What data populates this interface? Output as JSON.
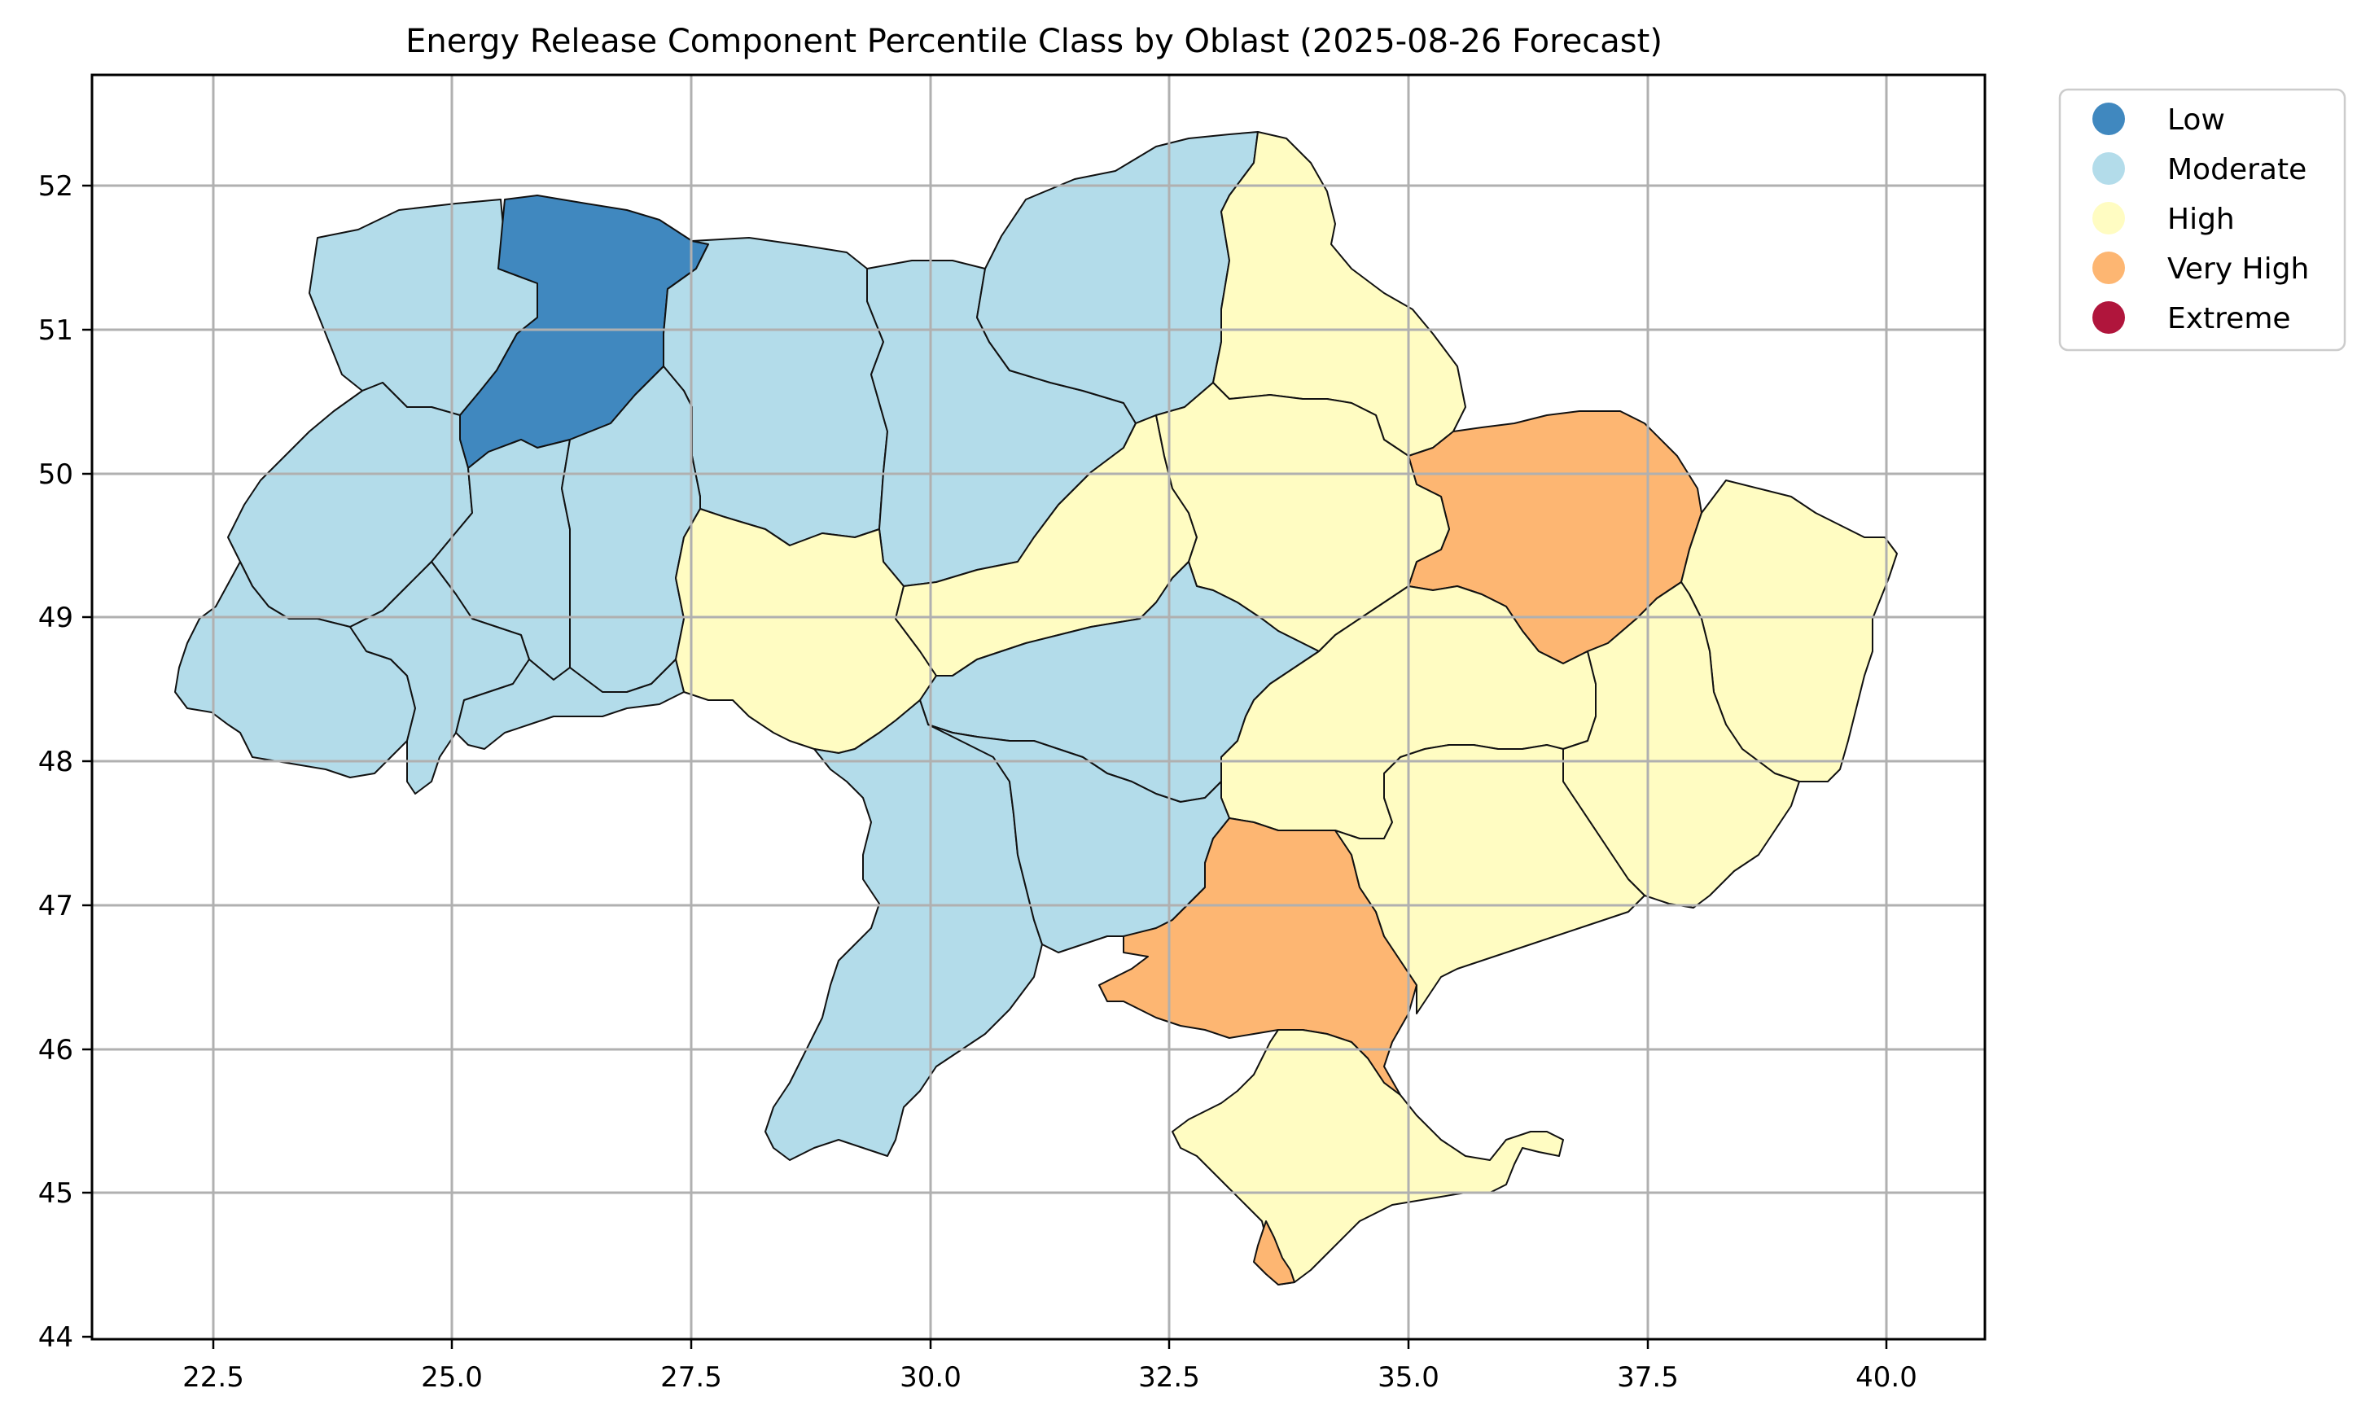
{
  "map": {
    "title": "Energy Release Component Percentile Class by Oblast (2025-08-26 Forecast)",
    "x_ticks": [
      "22.5",
      "25.0",
      "27.5",
      "30.0",
      "32.5",
      "35.0",
      "37.5",
      "40.0"
    ],
    "y_ticks": [
      "44",
      "45",
      "46",
      "47",
      "48",
      "49",
      "50",
      "51",
      "52"
    ],
    "x_range": [
      21.3,
      41.1
    ],
    "y_range": [
      44.0,
      52.75
    ],
    "grid": true,
    "legend_position": "outside-top-right"
  },
  "legend": {
    "items": [
      {
        "label": "Low",
        "color": "#4088bf"
      },
      {
        "label": "Moderate",
        "color": "#b3dcea"
      },
      {
        "label": "High",
        "color": "#fffcc2"
      },
      {
        "label": "Very High",
        "color": "#fdb672"
      },
      {
        "label": "Extreme",
        "color": "#b0153c"
      }
    ]
  },
  "regions": [
    {
      "name": "Volyn",
      "class": "Moderate"
    },
    {
      "name": "Rivne",
      "class": "Low"
    },
    {
      "name": "Zhytomyr",
      "class": "Moderate"
    },
    {
      "name": "Kyiv",
      "class": "Moderate"
    },
    {
      "name": "Chernihiv",
      "class": "Moderate"
    },
    {
      "name": "Sumy",
      "class": "High"
    },
    {
      "name": "Kharkiv",
      "class": "Very High"
    },
    {
      "name": "Luhansk",
      "class": "High"
    },
    {
      "name": "Lviv",
      "class": "Moderate"
    },
    {
      "name": "Ternopil",
      "class": "Moderate"
    },
    {
      "name": "Khmelnytskyi",
      "class": "Moderate"
    },
    {
      "name": "Vinnytsia",
      "class": "High"
    },
    {
      "name": "Cherkasy",
      "class": "High"
    },
    {
      "name": "Poltava",
      "class": "High"
    },
    {
      "name": "Zakarpattia",
      "class": "Moderate"
    },
    {
      "name": "Ivano-Frankivsk",
      "class": "Moderate"
    },
    {
      "name": "Chernivtsi",
      "class": "Moderate"
    },
    {
      "name": "Kirovohrad",
      "class": "Moderate"
    },
    {
      "name": "Dnipropetrovsk",
      "class": "High"
    },
    {
      "name": "Donetsk",
      "class": "High"
    },
    {
      "name": "Odesa",
      "class": "Moderate"
    },
    {
      "name": "Mykolaiv",
      "class": "Moderate"
    },
    {
      "name": "Kherson",
      "class": "Very High"
    },
    {
      "name": "Zaporizhzhia",
      "class": "High"
    },
    {
      "name": "Crimea",
      "class": "High"
    },
    {
      "name": "Sevastopol",
      "class": "Very High"
    }
  ]
}
